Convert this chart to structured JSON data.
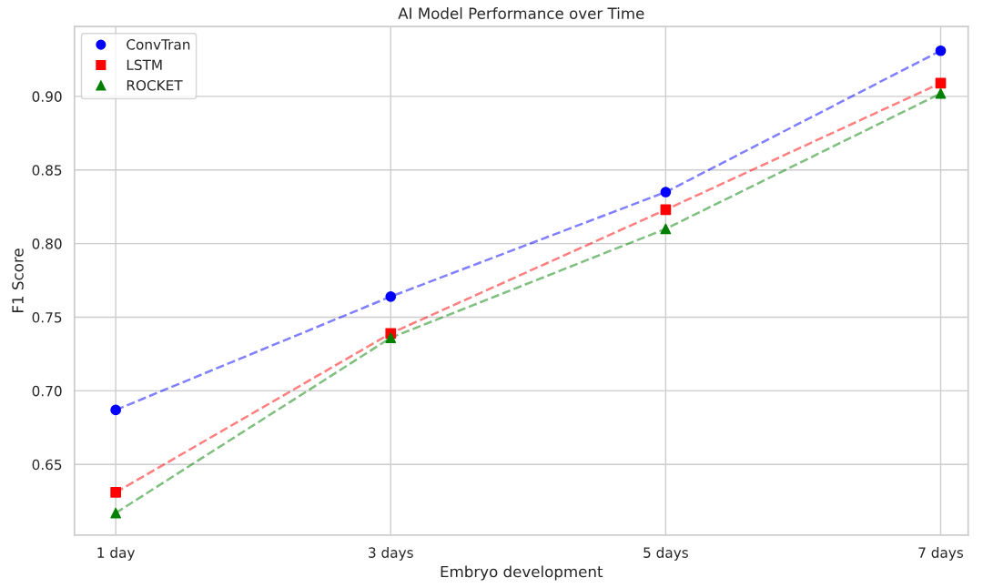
{
  "chart_data": {
    "type": "line",
    "title": "AI Model Performance over Time",
    "xlabel": "Embryo development",
    "ylabel": "F1 Score",
    "categories": [
      "1 day",
      "3 days",
      "5 days",
      "7 days"
    ],
    "series": [
      {
        "name": "ConvTran",
        "color": "#0000ff",
        "marker": "circle",
        "values": [
          0.687,
          0.764,
          0.835,
          0.931
        ]
      },
      {
        "name": "LSTM",
        "color": "#ff0000",
        "marker": "square",
        "values": [
          0.631,
          0.739,
          0.823,
          0.909
        ]
      },
      {
        "name": "ROCKET",
        "color": "#008000",
        "marker": "triangle",
        "values": [
          0.617,
          0.736,
          0.81,
          0.902
        ]
      }
    ],
    "ylim": [
      0.602,
      0.9475
    ],
    "yticks": [
      0.65,
      {
        "value": 0.7,
        "label": "0.70"
      },
      0.75,
      {
        "value": 0.8,
        "label": "0.80"
      },
      0.85,
      {
        "value": 0.9,
        "label": "0.90"
      }
    ],
    "line_style": "dashed",
    "grid": true,
    "legend": "top left"
  }
}
